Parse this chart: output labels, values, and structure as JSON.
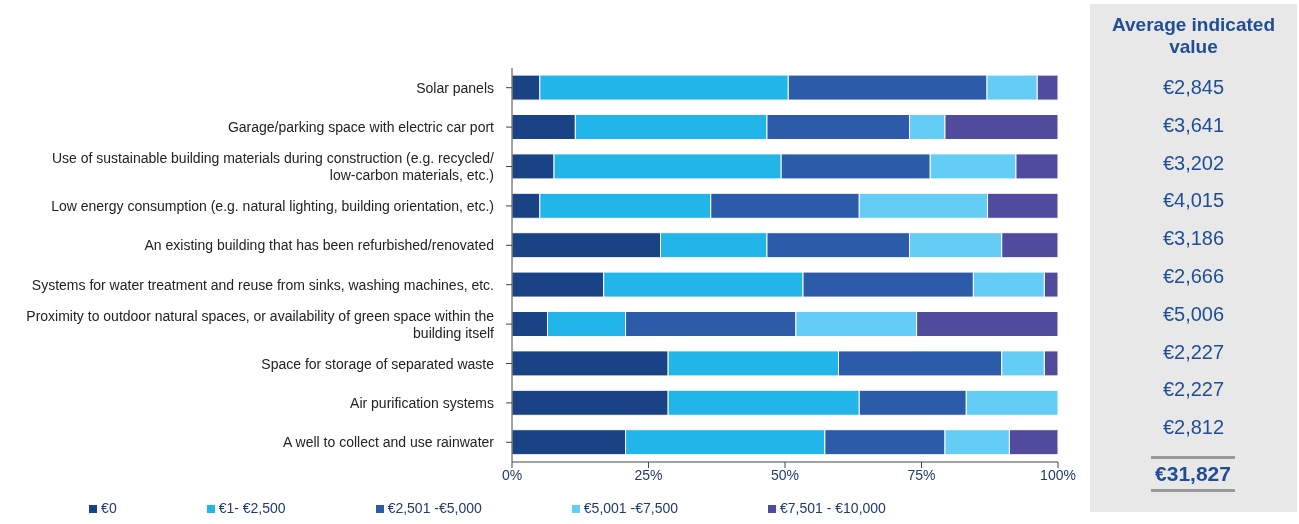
{
  "chart_data": {
    "type": "bar",
    "orientation": "horizontal",
    "stacked": true,
    "categories": [
      "Solar panels",
      "Garage/parking space with electric car port",
      "Use of sustainable building materials during construction (e.g. recycled/ low-carbon materials, etc.)",
      "Low energy consumption (e.g. natural lighting, building orientation, etc.)",
      "An existing building that has been refurbished/renovated",
      "Systems for water treatment and reuse from sinks, washing machines, etc.",
      "Proximity to outdoor natural spaces, or availability of green space within the building itself",
      "Space for storage of separated waste",
      "Air purification systems",
      "A well to collect and use rainwater"
    ],
    "series": [
      {
        "name": "€0",
        "color": "#1a4386",
        "values": [
          5.1,
          11.6,
          7.7,
          5.1,
          27.2,
          16.8,
          6.5,
          28.6,
          28.6,
          20.8
        ]
      },
      {
        "name": "€1- €2,500",
        "color": "#22b5ea",
        "values": [
          45.5,
          35.1,
          41.6,
          31.3,
          19.5,
          36.5,
          14.3,
          31.2,
          35.0,
          36.5
        ]
      },
      {
        "name": "€2,501 -€5,000",
        "color": "#2c5ba9",
        "values": [
          36.4,
          26.1,
          27.3,
          27.2,
          26.1,
          31.2,
          31.2,
          29.9,
          19.6,
          22.0
        ]
      },
      {
        "name": "€5,001 -€7,500",
        "color": "#63cdf5",
        "values": [
          9.2,
          6.5,
          15.7,
          23.5,
          16.9,
          13.0,
          22.1,
          7.8,
          16.8,
          11.8
        ]
      },
      {
        "name": "€7,501 - €10,000",
        "color": "#514b9e",
        "values": [
          3.8,
          20.7,
          7.7,
          12.9,
          10.3,
          2.5,
          25.9,
          2.5,
          0,
          8.9
        ]
      }
    ],
    "xlim": [
      0,
      100
    ],
    "xticks": [
      {
        "value": 0,
        "label": "0%"
      },
      {
        "value": 25,
        "label": "25%"
      },
      {
        "value": 50,
        "label": "50%"
      },
      {
        "value": 75,
        "label": "75%"
      },
      {
        "value": 100,
        "label": "100%"
      }
    ],
    "legend": "bottom",
    "annotations": [
      "Average indicated value",
      "€2,845",
      "€3,641",
      "€3,202",
      "€4,015",
      "€3,186",
      "€2,666",
      "€5,006",
      "€2,227",
      "€2,227",
      "€2,812",
      "€31,827"
    ]
  }
}
